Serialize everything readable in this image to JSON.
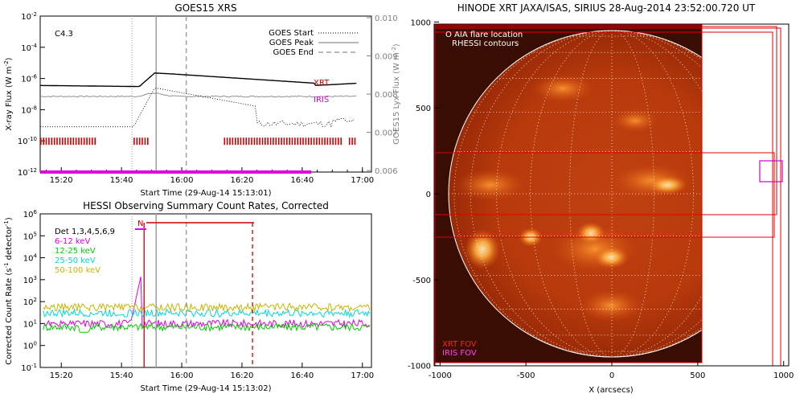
{
  "charts": {
    "goes": {
      "type": "line",
      "title": "GOES15 XRS",
      "flare_class": "C4.3",
      "xlabel": "Start Time (29-Aug-14 15:13:01)",
      "ylabel": "X-ray Flux (W m",
      "ylabel_sup": "-2",
      "ylabel_close": ")",
      "y2label": "GOES15 Lyx Flux (W m",
      "y2label_sup": "-2",
      "y2label_close": ")",
      "x_ticks": [
        "15:20",
        "15:40",
        "16:00",
        "16:20",
        "16:40",
        "17:00"
      ],
      "y_ticks": [
        {
          "b": "10",
          "e": "-2"
        },
        {
          "b": "10",
          "e": "-4"
        },
        {
          "b": "10",
          "e": "-6"
        },
        {
          "b": "10",
          "e": "-8"
        },
        {
          "b": "10",
          "e": "-10"
        },
        {
          "b": "10",
          "e": "-12"
        }
      ],
      "y2_ticks": [
        "0.010",
        "0.009",
        "0.008",
        "0.007",
        "0.006"
      ],
      "legend": [
        {
          "label": "GOES Start",
          "style": "dotted"
        },
        {
          "label": "GOES Peak",
          "style": "solid"
        },
        {
          "label": "GOES End",
          "style": "dashed"
        }
      ],
      "xrt_label": "XRT",
      "iris_label": "IRIS",
      "colors": {
        "xrt": "#cc0000",
        "iris": "#e000e0",
        "long": "#000000",
        "lya": "#909090",
        "line": "#a0a0a0"
      }
    },
    "hessi": {
      "type": "line",
      "title": "HESSI Observing Summary Count Rates, Corrected",
      "xlabel": "Start Time (29-Aug-14 15:13:02)",
      "ylabel": "Corrected Count Rate (s",
      "ylabel_sup": "-1",
      "ylabel_mid": " detector",
      "ylabel_sup2": "-1",
      "ylabel_close": ")",
      "x_ticks": [
        "15:20",
        "15:40",
        "16:00",
        "16:20",
        "16:40",
        "17:00"
      ],
      "y_ticks": [
        {
          "b": "10",
          "e": "6"
        },
        {
          "b": "10",
          "e": "5"
        },
        {
          "b": "10",
          "e": "4"
        },
        {
          "b": "10",
          "e": "3"
        },
        {
          "b": "10",
          "e": "2"
        },
        {
          "b": "10",
          "e": "1"
        },
        {
          "b": "10",
          "e": "0"
        },
        {
          "b": "10",
          "e": "-1"
        }
      ],
      "detectors": "Det 1,3,4,5,6,9",
      "bands": [
        {
          "label": "6-12 keV",
          "color": "#e000e0",
          "level": 10
        },
        {
          "label": "12-25 keV",
          "color": "#00cc00",
          "level": 7
        },
        {
          "label": "25-50 keV",
          "color": "#00d8d8",
          "level": 30
        },
        {
          "label": "50-100 keV",
          "color": "#c8b400",
          "level": 55
        }
      ],
      "night_label": "N"
    },
    "xrt": {
      "type": "image",
      "title": "HINODE XRT JAXA/ISAS, SIRIUS 28-Aug-2014 23:52:00.720 UT",
      "xlabel": "X (arcsecs)",
      "x_ticks": [
        "-1000",
        "-500",
        "0",
        "500",
        "1000"
      ],
      "y_ticks": [
        "1000",
        "500",
        "0",
        "-500",
        "-1000"
      ],
      "legend_aia": "O AIA flare location",
      "legend_rhessi": "RHESSI contours",
      "legend_xrt_fov": "XRT FOV",
      "legend_iris_fov": "IRIS FOV",
      "colors": {
        "fov": "#e00000",
        "iris": "#cc00cc"
      }
    }
  }
}
